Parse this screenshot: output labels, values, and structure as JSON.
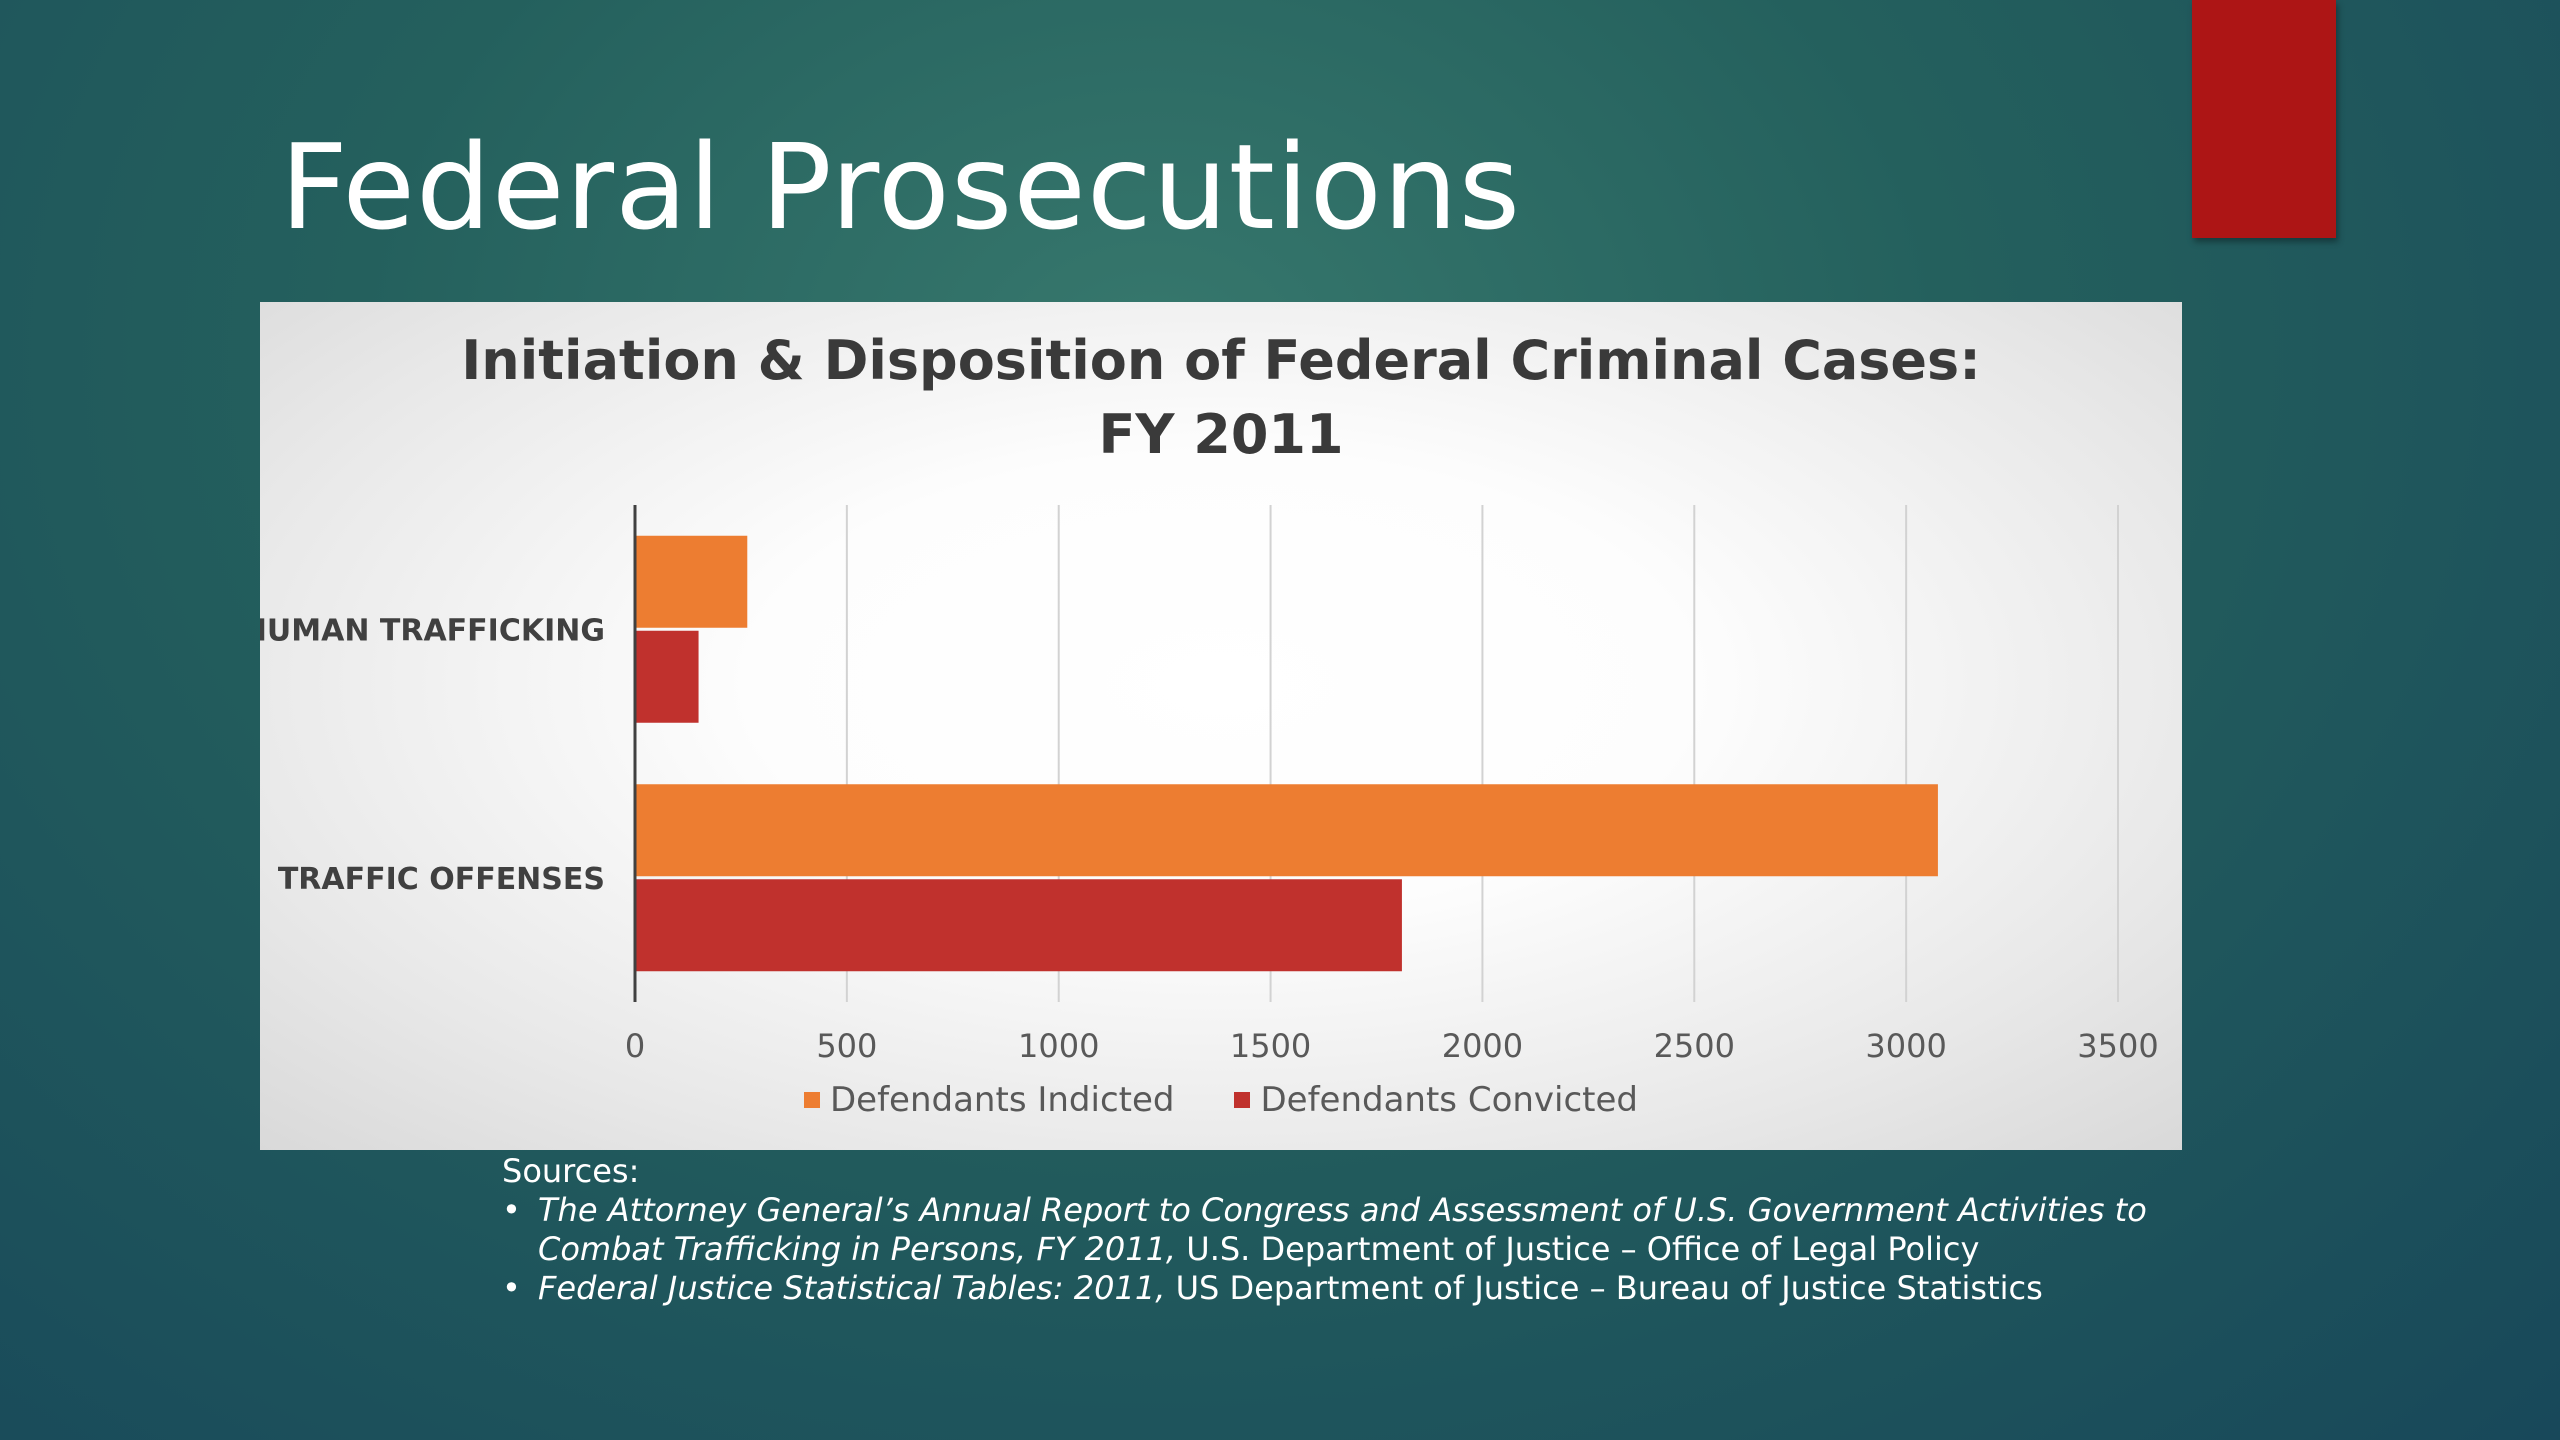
{
  "slide": {
    "title": "Federal Prosecutions",
    "accent_color": "#ad1515"
  },
  "chart_data": {
    "type": "bar",
    "orientation": "horizontal",
    "title": "Initiation & Disposition of Federal Criminal Cases: FY 2011",
    "title_lines": [
      "Initiation & Disposition of Federal Criminal Cases:",
      "FY 2011"
    ],
    "categories": [
      "HUMAN TRAFFICKING",
      "TRAFFIC OFFENSES"
    ],
    "series": [
      {
        "name": "Defendants Indicted",
        "color": "#ed7d31",
        "values": [
          265,
          3075
        ]
      },
      {
        "name": "Defendants Convicted",
        "color": "#c0312d",
        "values": [
          150,
          1810
        ]
      }
    ],
    "xlim": [
      0,
      3500
    ],
    "x_ticks": [
      "0",
      "500",
      "1000",
      "1500",
      "2000",
      "2500",
      "3000",
      "3500"
    ],
    "grid": true,
    "legend_position": "bottom"
  },
  "sources": {
    "heading": "Sources:",
    "bullet": "•",
    "items": [
      {
        "lines": [
          [
            {
              "text": "The Attorney General’s Annual Report to Congress and Assessment of U.S. Government Activities to",
              "italic": true
            }
          ],
          [
            {
              "text": "Combat Trafficking in Persons, FY 2011,",
              "italic": true
            },
            {
              "text": " U.S. Department of Justice – Office of Legal Policy",
              "italic": false
            }
          ]
        ]
      },
      {
        "lines": [
          [
            {
              "text": "Federal Justice Statistical Tables: 2011,",
              "italic": true
            },
            {
              "text": " US Department of Justice – Bureau of Justice Statistics",
              "italic": false
            }
          ]
        ]
      }
    ]
  }
}
